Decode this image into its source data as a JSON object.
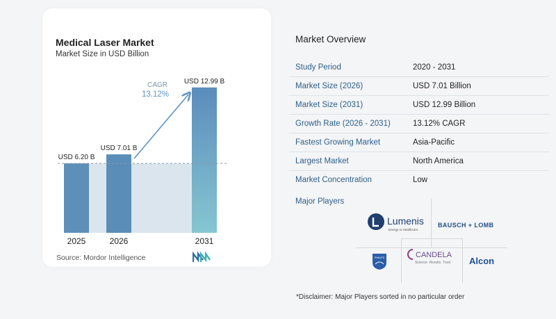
{
  "chart": {
    "title": "Medical Laser Market",
    "subtitle": "Market Size in USD Billion",
    "cagr_label": "CAGR",
    "cagr_value": "13.12%",
    "source": "Source:  Mordor Intelligence"
  },
  "chart_data": {
    "type": "bar",
    "title": "Medical Laser Market",
    "subtitle": "Market Size in USD Billion",
    "categories": [
      "2025",
      "2026",
      "2031"
    ],
    "values": [
      6.2,
      7.01,
      12.99
    ],
    "value_labels": [
      "USD 6.20 B",
      "USD 7.01 B",
      "USD 12.99 B"
    ],
    "ylim": [
      0,
      13.6
    ],
    "xlabel": "",
    "ylabel": "",
    "annotation": {
      "label": "CAGR",
      "value": "13.12%"
    },
    "grid": false,
    "colors": {
      "bar_2025": "#5d8fb8",
      "bar_2026": "#5a8eb9",
      "bar_2031_top": "#5b8cbc",
      "bar_2031_bottom": "#86c6d1",
      "band": "#dbe5ee",
      "arrow": "#5e94c4"
    }
  },
  "overview": {
    "title": "Market Overview",
    "rows": [
      {
        "label": "Study Period",
        "value": "2020 - 2031"
      },
      {
        "label": "Market Size (2026)",
        "value": "USD 7.01 Billion"
      },
      {
        "label": "Market Size (2031)",
        "value": "USD 12.99 Billion"
      },
      {
        "label": "Growth Rate (2026 - 2031)",
        "value": "13.12% CAGR"
      },
      {
        "label": "Fastest Growing Market",
        "value": "Asia-Pacific"
      },
      {
        "label": "Largest Market",
        "value": "North America"
      },
      {
        "label": "Market Concentration",
        "value": "Low"
      }
    ]
  },
  "players": {
    "title": "Major Players",
    "lumenis": "Lumenis",
    "lumenis_tagline": "Energy to Healthcare",
    "bausch": "BAUSCH + LOMB",
    "candela": "CANDELA",
    "candela_tagline": "Science. Results. Trust",
    "philips": "PHILIPS",
    "alcon": "Alcon"
  },
  "disclaimer": "*Disclaimer: Major Players sorted in no particular order"
}
